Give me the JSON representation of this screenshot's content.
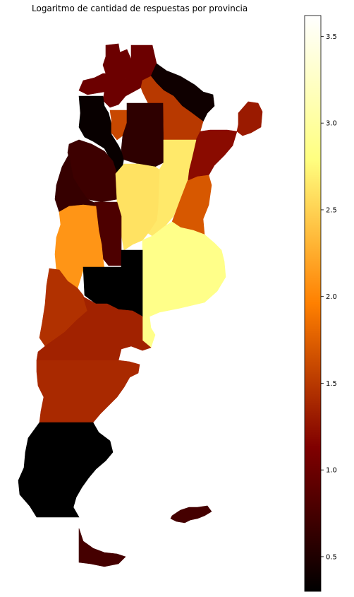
{
  "chart_data": {
    "type": "choropleth",
    "title": "Logaritmo de cantidad de respuestas por provincia",
    "colormap": "afmhot",
    "colorbar": {
      "range": [
        0.3,
        3.62
      ],
      "ticks": [
        0.5,
        1.0,
        1.5,
        2.0,
        2.5,
        3.0,
        3.5
      ],
      "tick_labels": [
        "0.5",
        "1.0",
        "1.5",
        "2.0",
        "2.5",
        "3.0",
        "3.5"
      ],
      "placement": "right"
    },
    "regions": [
      {
        "name": "Jujuy",
        "value": 1.0
      },
      {
        "name": "Salta",
        "value": 1.0
      },
      {
        "name": "Formosa",
        "value": 0.4
      },
      {
        "name": "Chaco",
        "value": 1.5
      },
      {
        "name": "Misiones",
        "value": 1.3
      },
      {
        "name": "Catamarca",
        "value": 0.35
      },
      {
        "name": "Tucuman",
        "value": 1.6
      },
      {
        "name": "Santiago del Estero",
        "value": 0.6
      },
      {
        "name": "Corrientes",
        "value": 1.2
      },
      {
        "name": "La Rioja",
        "value": 0.7
      },
      {
        "name": "Santa Fe",
        "value": 2.65
      },
      {
        "name": "San Juan",
        "value": 0.65
      },
      {
        "name": "Cordoba",
        "value": 2.6
      },
      {
        "name": "Entre Rios",
        "value": 1.7
      },
      {
        "name": "San Luis",
        "value": 0.8
      },
      {
        "name": "Mendoza",
        "value": 2.1
      },
      {
        "name": "Buenos Aires",
        "value": 2.85
      },
      {
        "name": "La Pampa",
        "value": 0.3
      },
      {
        "name": "Neuquen",
        "value": 1.45
      },
      {
        "name": "Rio Negro",
        "value": 1.35
      },
      {
        "name": "Chubut",
        "value": 1.4
      },
      {
        "name": "Santa Cruz",
        "value": 0.3
      },
      {
        "name": "Tierra del Fuego",
        "value": 0.75
      },
      {
        "name": "Islas Malvinas",
        "value": 0.75
      }
    ]
  }
}
